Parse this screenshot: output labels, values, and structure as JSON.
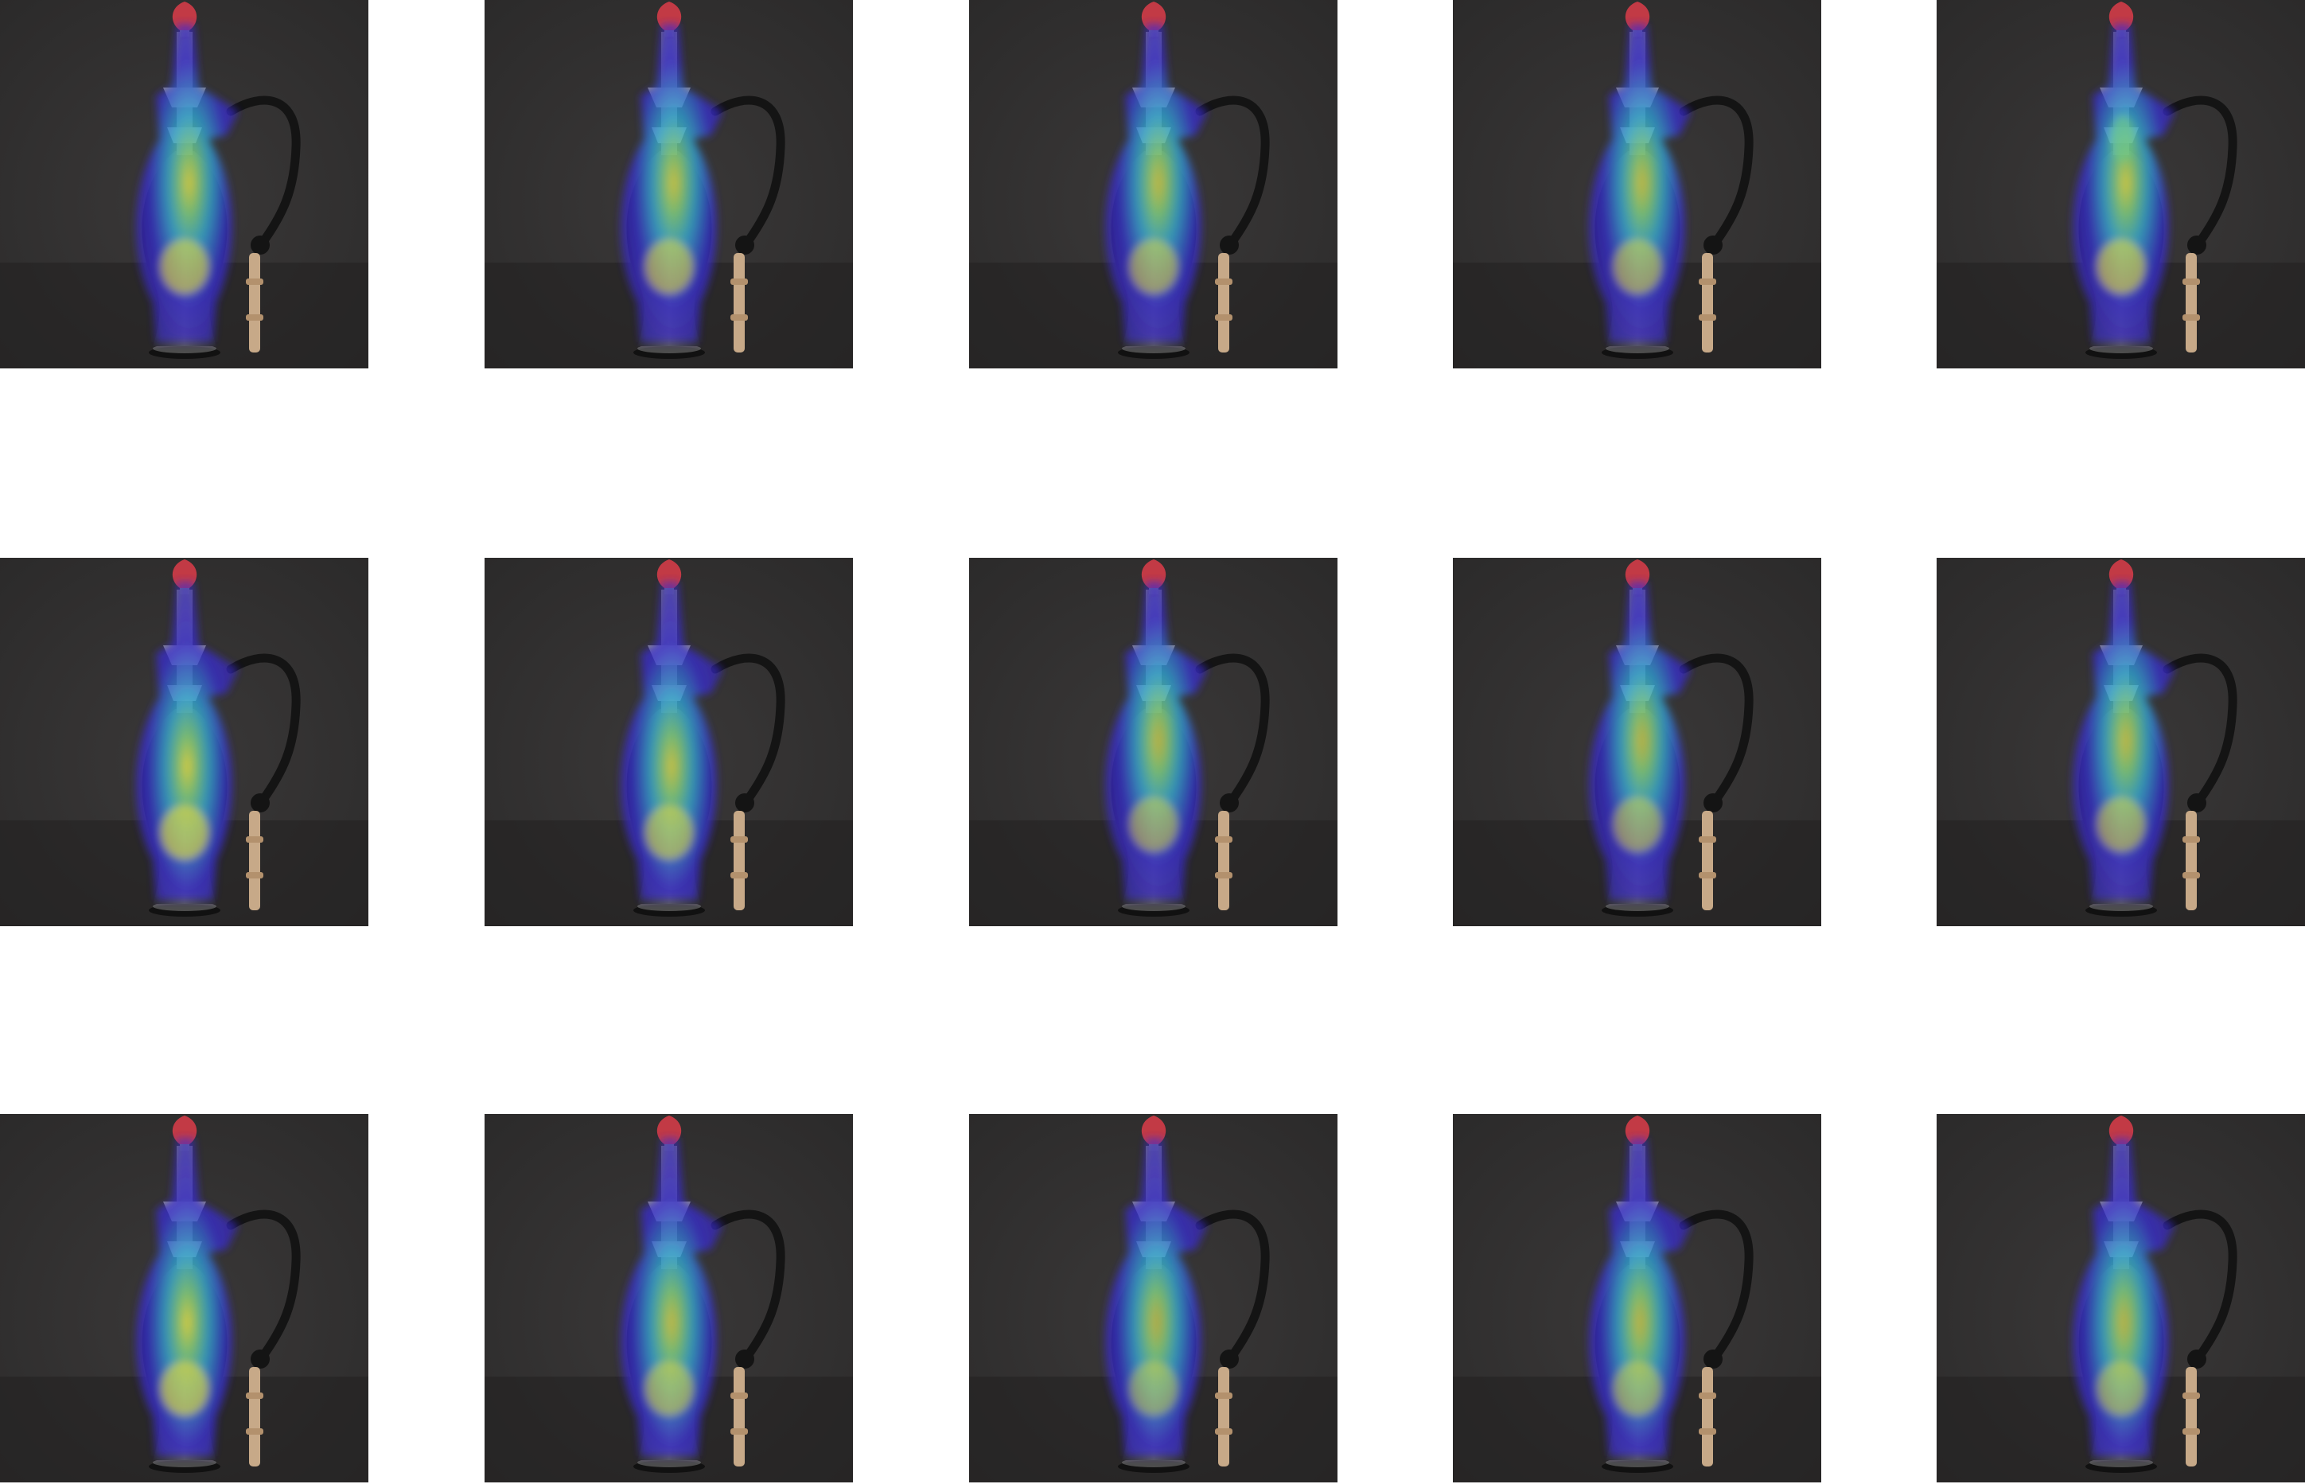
{
  "figure": {
    "rows": 3,
    "columns": 5,
    "subject": "hookah",
    "overlay": "attention-heatmap",
    "colors": {
      "page_background": "#ffffff",
      "photo_background": "#2b2a2a",
      "heatmap_low": "#3a2bd6",
      "heatmap_mid": "#2fb3e0",
      "heatmap_high": "#f2e23a",
      "bowl": "#c23a45",
      "hose": "#141414",
      "mouthpiece": "#c7a988"
    },
    "panels": [
      {
        "row": 1,
        "col": 1,
        "hot_level": 0.85,
        "focus": "vase-center"
      },
      {
        "row": 1,
        "col": 2,
        "hot_level": 0.8,
        "focus": "vase-center"
      },
      {
        "row": 1,
        "col": 3,
        "hot_level": 0.75,
        "focus": "vase-center"
      },
      {
        "row": 1,
        "col": 4,
        "hot_level": 0.75,
        "focus": "vase-center"
      },
      {
        "row": 1,
        "col": 5,
        "hot_level": 0.85,
        "focus": "vase-center-and-stem"
      },
      {
        "row": 2,
        "col": 1,
        "hot_level": 0.9,
        "focus": "vase-lower"
      },
      {
        "row": 2,
        "col": 2,
        "hot_level": 0.8,
        "focus": "vase-lower"
      },
      {
        "row": 2,
        "col": 3,
        "hot_level": 0.7,
        "focus": "vase-center"
      },
      {
        "row": 2,
        "col": 4,
        "hot_level": 0.7,
        "focus": "vase-center"
      },
      {
        "row": 2,
        "col": 5,
        "hot_level": 0.75,
        "focus": "vase-center"
      },
      {
        "row": 3,
        "col": 1,
        "hot_level": 0.9,
        "focus": "vase-lower"
      },
      {
        "row": 3,
        "col": 2,
        "hot_level": 0.75,
        "focus": "vase-lower"
      },
      {
        "row": 3,
        "col": 3,
        "hot_level": 0.65,
        "focus": "vase-lower"
      },
      {
        "row": 3,
        "col": 4,
        "hot_level": 0.7,
        "focus": "vase-lower"
      },
      {
        "row": 3,
        "col": 5,
        "hot_level": 0.7,
        "focus": "vase-lower"
      }
    ]
  }
}
